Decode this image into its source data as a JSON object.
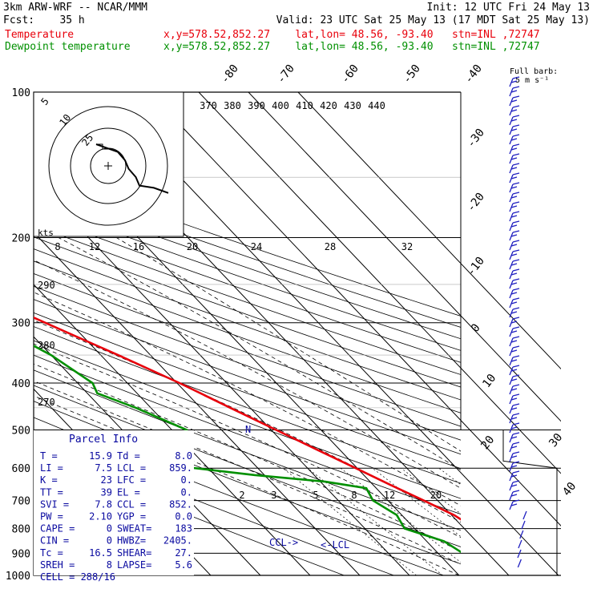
{
  "header": {
    "left1": "3km ARW-WRF -- NCAR/MMM",
    "left2": "Fcst:    35 h",
    "init": "Init: 12 UTC Fri 24 May 13",
    "valid": "Valid: 23 UTC Sat 25 May 13 (17 MDT Sat 25 May 13)",
    "temp_label": "Temperature",
    "dew_label": "Dewpoint temperature",
    "loc_line": "x,y=578.52,852.27    lat,lon= 48.56, -93.40   stn=INL ,72747"
  },
  "colors": {
    "temperature": "#e8000b",
    "dewpoint": "#009000",
    "parcel_box": "#0a0aa0",
    "hodograph": "#000000",
    "barbs": "#2020c0"
  },
  "chart_data": {
    "type": "skew-t",
    "y_axis": {
      "label": "",
      "pressure_ticks": [
        100,
        200,
        300,
        400,
        500,
        600,
        700,
        800,
        900,
        1000
      ]
    },
    "isotherm_labels": [
      "-80",
      "-70",
      "-60",
      "-50",
      "-40",
      "-30",
      "-20",
      "-10",
      "0",
      "10",
      "20",
      "30",
      "40"
    ],
    "theta_labels": [
      "370",
      "380",
      "390",
      "400",
      "410",
      "420",
      "430",
      "440"
    ],
    "mixing_ratio_labels_upper": [
      "8",
      "12",
      "16",
      "20",
      "24",
      "28",
      "32"
    ],
    "mixing_ratio_labels_lower": [
      "2",
      "3",
      "5",
      "8",
      "12",
      "20"
    ],
    "dry_adiabat_labels": [
      "290",
      "280",
      "270"
    ],
    "annotations": {
      "ccl": "CCL->",
      "lcl": "<-LCL",
      "n_marker": "N",
      "kts": "kts",
      "full_barb": "Full barb:",
      "full_barb_value": "5 m s⁻¹"
    },
    "temperature_profile": [
      {
        "p": 1000,
        "t": 22
      },
      {
        "p": 950,
        "t": 19
      },
      {
        "p": 900,
        "t": 16.2
      },
      {
        "p": 850,
        "t": 13.9
      },
      {
        "p": 800,
        "t": 12.3
      },
      {
        "p": 750,
        "t": 10.5
      },
      {
        "p": 700,
        "t": 7.2
      },
      {
        "p": 650,
        "t": 3.5
      },
      {
        "p": 600,
        "t": -0.3
      },
      {
        "p": 550,
        "t": -4.5
      },
      {
        "p": 500,
        "t": -9
      },
      {
        "p": 450,
        "t": -14
      },
      {
        "p": 400,
        "t": -19.5
      },
      {
        "p": 350,
        "t": -26.5
      },
      {
        "p": 300,
        "t": -35
      },
      {
        "p": 250,
        "t": -45
      },
      {
        "p": 225,
        "t": -51
      },
      {
        "p": 200,
        "t": -55
      },
      {
        "p": 175,
        "t": -57
      },
      {
        "p": 150,
        "t": -58
      },
      {
        "p": 135,
        "t": -57
      },
      {
        "p": 120,
        "t": -56
      },
      {
        "p": 100,
        "t": -57
      }
    ],
    "dewpoint_profile": [
      {
        "p": 1000,
        "t": 8
      },
      {
        "p": 950,
        "t": 6.5
      },
      {
        "p": 900,
        "t": 5
      },
      {
        "p": 850,
        "t": 3.5
      },
      {
        "p": 800,
        "t": -2
      },
      {
        "p": 750,
        "t": -1
      },
      {
        "p": 700,
        "t": -3
      },
      {
        "p": 660,
        "t": -2
      },
      {
        "p": 640,
        "t": -9
      },
      {
        "p": 620,
        "t": -22
      },
      {
        "p": 590,
        "t": -38
      },
      {
        "p": 560,
        "t": -44
      },
      {
        "p": 530,
        "t": -30
      },
      {
        "p": 500,
        "t": -27
      },
      {
        "p": 450,
        "t": -33
      },
      {
        "p": 420,
        "t": -38
      },
      {
        "p": 400,
        "t": -37
      },
      {
        "p": 350,
        "t": -40
      },
      {
        "p": 300,
        "t": -46
      },
      {
        "p": 250,
        "t": -52
      },
      {
        "p": 200,
        "t": -60
      },
      {
        "p": 150,
        "t": -70
      },
      {
        "p": 125,
        "t": -74
      },
      {
        "p": 100,
        "t": -80
      }
    ],
    "hodograph": {
      "ring_labels": [
        "5",
        "10",
        "25"
      ],
      "trace": [
        [
          0,
          0
        ],
        [
          1,
          2
        ],
        [
          3,
          6
        ],
        [
          6,
          8
        ],
        [
          9,
          9
        ],
        [
          12,
          11
        ],
        [
          15,
          12
        ],
        [
          16,
          16
        ],
        [
          18,
          20
        ]
      ]
    }
  },
  "parcel": {
    "title": "Parcel Info",
    "rows": [
      [
        "T  =",
        "15.9",
        "Td =",
        "8.0"
      ],
      [
        "LI =",
        "7.5",
        "LCL =",
        "859."
      ],
      [
        "K  =",
        "23",
        "LFC =",
        "0."
      ],
      [
        "TT =",
        "39",
        "EL  =",
        "0."
      ],
      [
        "SVI =",
        "7.8",
        "CCL =",
        "852."
      ],
      [
        "PW =",
        "2.10",
        "YGP =",
        "0.0"
      ],
      [
        "CAPE =",
        "0",
        "SWEAT=",
        "183"
      ],
      [
        "CIN =",
        "0",
        "HWBZ=",
        "2405."
      ],
      [
        "Tc  =",
        "16.5",
        "SHEAR=",
        "27."
      ],
      [
        "SREH =",
        "8",
        "LAPSE=",
        "5.6"
      ]
    ],
    "cell": "CELL = 288/16"
  }
}
